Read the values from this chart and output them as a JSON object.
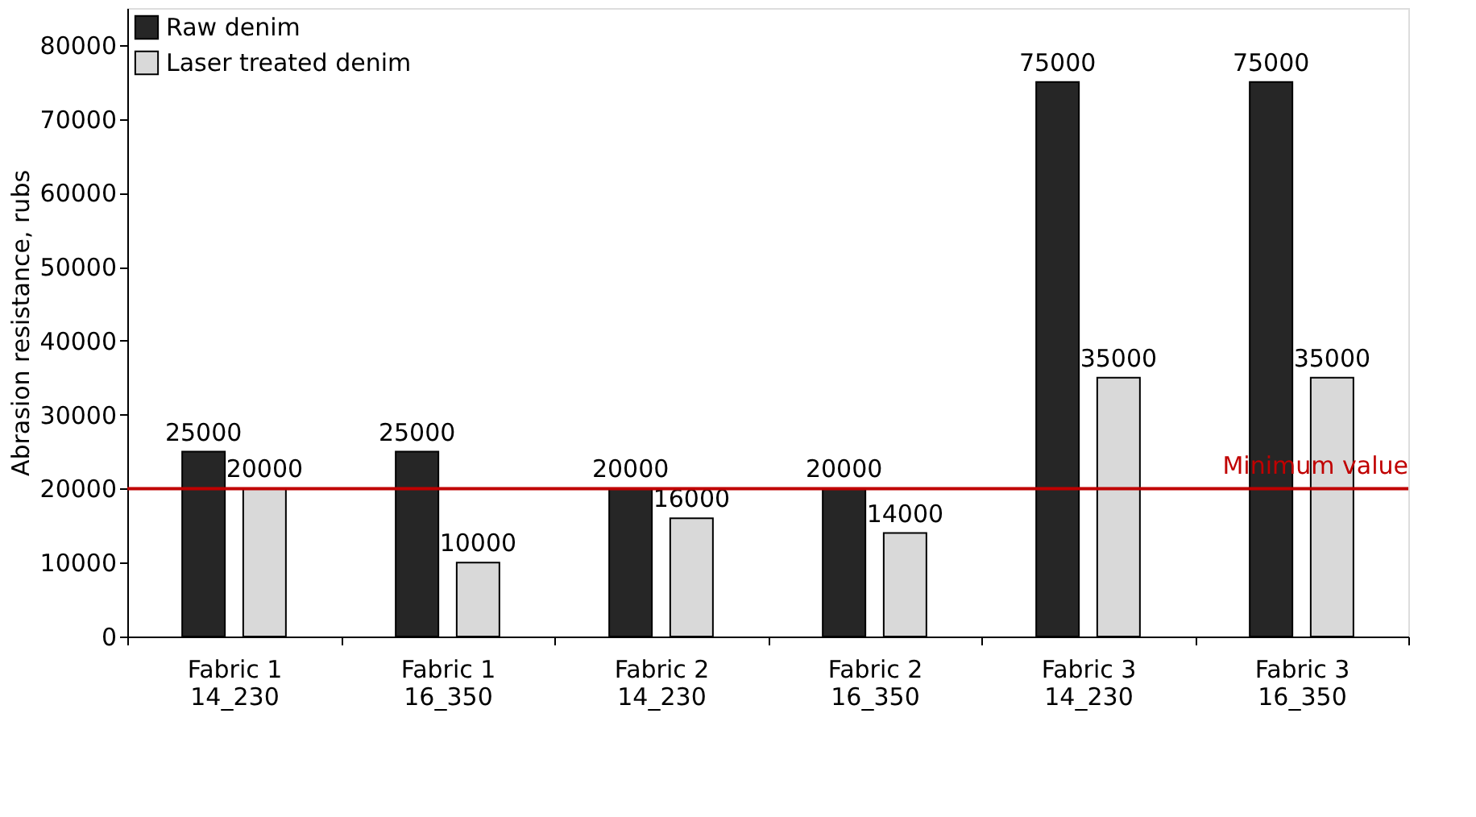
{
  "chart_data": {
    "type": "bar",
    "ylabel": "Abrasion resistance, rubs",
    "categories": [
      "Fabric 1\n14_230",
      "Fabric 1\n16_350",
      "Fabric 2\n14_230",
      "Fabric 2\n16_350",
      "Fabric 3\n14_230",
      "Fabric 3\n16_350"
    ],
    "series": [
      {
        "name": "Raw denim",
        "color": "#262626",
        "values": [
          25000,
          25000,
          20000,
          20000,
          75000,
          75000
        ]
      },
      {
        "name": "Laser treated denim",
        "color": "#d9d9d9",
        "values": [
          20000,
          10000,
          16000,
          14000,
          35000,
          35000
        ]
      }
    ],
    "ylim": [
      0,
      85000
    ],
    "yticks": [
      0,
      10000,
      20000,
      30000,
      40000,
      50000,
      60000,
      70000,
      80000
    ],
    "ref_lines": [
      {
        "axis": "y",
        "value": 20000,
        "label": "Minimum value",
        "color": "#c00000"
      }
    ],
    "data_labels": true,
    "grid": false,
    "legend": "top left"
  }
}
